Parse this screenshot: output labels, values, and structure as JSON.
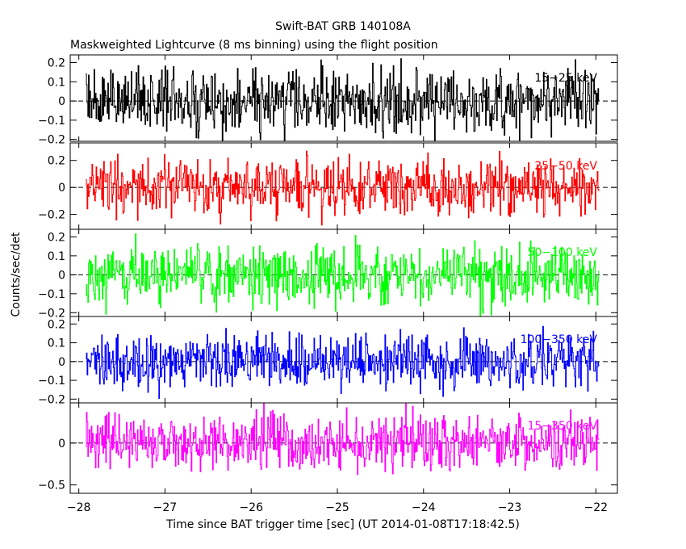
{
  "chart_data": {
    "type": "line",
    "title": "Swift-BAT GRB 140108A",
    "subtitle": "Maskweighted Lightcurve (8 ms binning) using the flight position",
    "xlabel": "Time since BAT trigger time [sec] (UT 2014-01-08T17:18:42.5)",
    "ylabel": "Counts/sec/det",
    "xlim": [
      -28.1,
      -21.75
    ],
    "x_ticks": [
      -28,
      -27,
      -26,
      -25,
      -24,
      -23,
      -22
    ],
    "x_tick_labels": [
      "−28",
      "−27",
      "−26",
      "−25",
      "−24",
      "−23",
      "−22"
    ],
    "x_range_data": [
      -27.92,
      -21.96
    ],
    "bin_width_s": 0.008,
    "grid": false,
    "panels": [
      {
        "name": "15−25 keV",
        "color": "#000000",
        "ylim": [
          -0.21,
          0.24
        ],
        "y_ticks": [
          0.2,
          0.1,
          0,
          -0.1,
          -0.2
        ],
        "y_tick_labels": [
          "0.2",
          "0.1",
          "0",
          "−0.1",
          "−0.2"
        ],
        "mean": 0.0,
        "noise_sigma": 0.08
      },
      {
        "name": "25−50 keV",
        "color": "#ff0000",
        "ylim": [
          -0.31,
          0.33
        ],
        "y_ticks": [
          0.2,
          0,
          -0.2
        ],
        "y_tick_labels": [
          "0.2",
          "0",
          "−0.2"
        ],
        "mean": 0.0,
        "noise_sigma": 0.1
      },
      {
        "name": "50−100 keV",
        "color": "#00ff00",
        "ylim": [
          -0.22,
          0.24
        ],
        "y_ticks": [
          0.2,
          0.1,
          0,
          -0.1,
          -0.2
        ],
        "y_tick_labels": [
          "0.2",
          "0.1",
          "0",
          "−0.1",
          "−0.2"
        ],
        "mean": 0.0,
        "noise_sigma": 0.08
      },
      {
        "name": "100−350 keV",
        "color": "#0000ff",
        "ylim": [
          -0.22,
          0.24
        ],
        "y_ticks": [
          0.2,
          0.1,
          0,
          -0.1,
          -0.2
        ],
        "y_tick_labels": [
          "0.2",
          "0.1",
          "0",
          "−0.1",
          "−0.2"
        ],
        "mean": 0.0,
        "noise_sigma": 0.07
      },
      {
        "name": "15−350 keV",
        "color": "#ff00ff",
        "ylim": [
          -0.6,
          0.48
        ],
        "y_ticks": [
          0,
          -0.5
        ],
        "y_tick_labels": [
          "0",
          "−0.5"
        ],
        "mean": 0.0,
        "noise_sigma": 0.17
      }
    ]
  }
}
